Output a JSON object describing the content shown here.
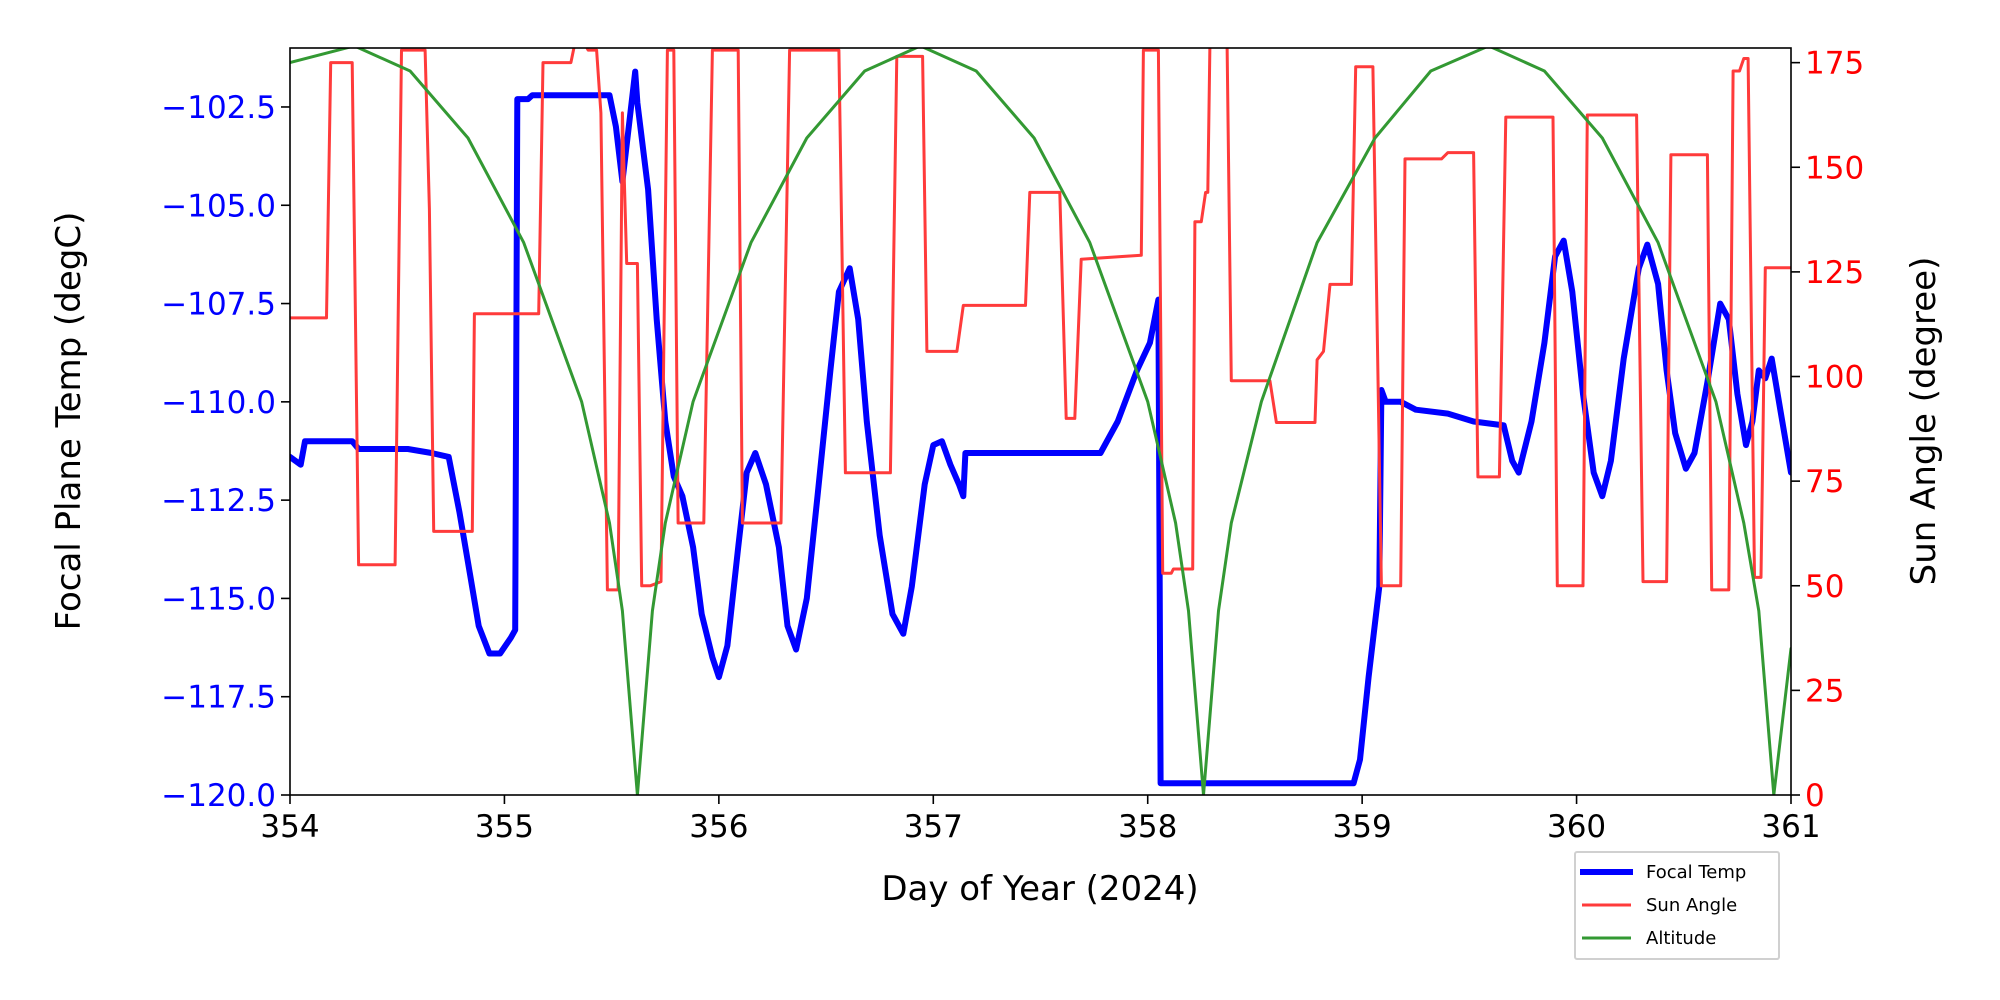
{
  "chart_data": {
    "type": "line",
    "title": "",
    "xlabel": "Day of Year (2024)",
    "ylabel_left": "Focal Plane Temp (degC)",
    "ylabel_right": "Sun Angle (degree)",
    "xlim": [
      354,
      361
    ],
    "ylim_left": [
      -120,
      -101
    ],
    "ylim_right": [
      0,
      178.5
    ],
    "x_ticks": [
      "354",
      "355",
      "356",
      "357",
      "358",
      "359",
      "360",
      "361"
    ],
    "x_tick_values": [
      354,
      355,
      356,
      357,
      358,
      359,
      360,
      361
    ],
    "left_ticks": [
      "−120.0",
      "−117.5",
      "−115.0",
      "−112.5",
      "−110.0",
      "−107.5",
      "−105.0",
      "−102.5"
    ],
    "left_tick_values": [
      -120,
      -117.5,
      -115,
      -112.5,
      -110,
      -107.5,
      -105,
      -102.5
    ],
    "right_ticks": [
      "0",
      "25",
      "50",
      "75",
      "100",
      "125",
      "150",
      "175"
    ],
    "right_tick_values": [
      0,
      25,
      50,
      75,
      100,
      125,
      150,
      175
    ],
    "colors": {
      "left_axis": "#0000ff",
      "right_axis": "#ff0000",
      "focal": "#0000ff",
      "sun": "#ff3b3b",
      "altitude": "#339933"
    },
    "legend": {
      "placement": "lower-right outside",
      "entries": [
        "Focal Temp",
        "Sun Angle",
        "Altitude"
      ]
    },
    "series": [
      {
        "name": "Focal Temp",
        "axis": "left",
        "points": [
          [
            354.0,
            -111.4
          ],
          [
            354.05,
            -111.6
          ],
          [
            354.07,
            -111.0
          ],
          [
            354.29,
            -111.0
          ],
          [
            354.32,
            -111.2
          ],
          [
            354.55,
            -111.2
          ],
          [
            354.66,
            -111.3
          ],
          [
            354.74,
            -111.4
          ],
          [
            354.79,
            -112.8
          ],
          [
            354.84,
            -114.4
          ],
          [
            354.88,
            -115.7
          ],
          [
            354.93,
            -116.4
          ],
          [
            354.98,
            -116.4
          ],
          [
            355.03,
            -116.0
          ],
          [
            355.05,
            -115.8
          ],
          [
            355.06,
            -102.3
          ],
          [
            355.11,
            -102.3
          ],
          [
            355.13,
            -102.2
          ],
          [
            355.49,
            -102.2
          ],
          [
            355.52,
            -103.0
          ],
          [
            355.55,
            -104.4
          ],
          [
            355.58,
            -103.0
          ],
          [
            355.61,
            -101.6
          ],
          [
            355.62,
            -102.4
          ],
          [
            355.67,
            -104.6
          ],
          [
            355.71,
            -107.9
          ],
          [
            355.75,
            -110.5
          ],
          [
            355.79,
            -111.9
          ],
          [
            355.83,
            -112.4
          ],
          [
            355.88,
            -113.7
          ],
          [
            355.92,
            -115.4
          ],
          [
            355.97,
            -116.5
          ],
          [
            356.0,
            -117.0
          ],
          [
            356.04,
            -116.2
          ],
          [
            356.09,
            -113.7
          ],
          [
            356.13,
            -111.8
          ],
          [
            356.17,
            -111.3
          ],
          [
            356.22,
            -112.1
          ],
          [
            356.28,
            -113.7
          ],
          [
            356.32,
            -115.7
          ],
          [
            356.36,
            -116.3
          ],
          [
            356.41,
            -115.0
          ],
          [
            356.46,
            -112.4
          ],
          [
            356.52,
            -109.2
          ],
          [
            356.56,
            -107.2
          ],
          [
            356.61,
            -106.6
          ],
          [
            356.65,
            -107.9
          ],
          [
            356.69,
            -110.5
          ],
          [
            356.75,
            -113.4
          ],
          [
            356.81,
            -115.4
          ],
          [
            356.86,
            -115.9
          ],
          [
            356.9,
            -114.7
          ],
          [
            356.96,
            -112.1
          ],
          [
            357.0,
            -111.1
          ],
          [
            357.04,
            -111.0
          ],
          [
            357.08,
            -111.6
          ],
          [
            357.12,
            -112.1
          ],
          [
            357.14,
            -112.4
          ],
          [
            357.15,
            -111.3
          ],
          [
            357.78,
            -111.3
          ],
          [
            357.86,
            -110.5
          ],
          [
            357.95,
            -109.2
          ],
          [
            358.01,
            -108.5
          ],
          [
            358.05,
            -107.4
          ],
          [
            358.06,
            -119.7
          ],
          [
            358.96,
            -119.7
          ],
          [
            358.99,
            -119.1
          ],
          [
            359.03,
            -117.0
          ],
          [
            359.08,
            -114.7
          ],
          [
            359.09,
            -109.7
          ],
          [
            359.11,
            -110.0
          ],
          [
            359.18,
            -110.0
          ],
          [
            359.25,
            -110.2
          ],
          [
            359.4,
            -110.3
          ],
          [
            359.52,
            -110.5
          ],
          [
            359.66,
            -110.6
          ],
          [
            359.7,
            -111.5
          ],
          [
            359.73,
            -111.8
          ],
          [
            359.79,
            -110.5
          ],
          [
            359.85,
            -108.5
          ],
          [
            359.9,
            -106.3
          ],
          [
            359.94,
            -105.9
          ],
          [
            359.98,
            -107.2
          ],
          [
            360.03,
            -109.8
          ],
          [
            360.08,
            -111.8
          ],
          [
            360.12,
            -112.4
          ],
          [
            360.16,
            -111.5
          ],
          [
            360.22,
            -108.9
          ],
          [
            360.29,
            -106.6
          ],
          [
            360.33,
            -106.0
          ],
          [
            360.38,
            -107.0
          ],
          [
            360.42,
            -109.2
          ],
          [
            360.46,
            -110.8
          ],
          [
            360.51,
            -111.7
          ],
          [
            360.55,
            -111.3
          ],
          [
            360.61,
            -109.5
          ],
          [
            360.67,
            -107.5
          ],
          [
            360.71,
            -107.9
          ],
          [
            360.75,
            -109.8
          ],
          [
            360.79,
            -111.1
          ],
          [
            360.82,
            -110.5
          ],
          [
            360.85,
            -109.2
          ],
          [
            360.88,
            -109.4
          ],
          [
            360.91,
            -108.9
          ],
          [
            360.95,
            -110.2
          ],
          [
            361.0,
            -111.8
          ]
        ]
      },
      {
        "name": "Sun Angle",
        "axis": "right",
        "points": [
          [
            354.0,
            114
          ],
          [
            354.17,
            114
          ],
          [
            354.19,
            175
          ],
          [
            354.29,
            175
          ],
          [
            354.32,
            55
          ],
          [
            354.49,
            55
          ],
          [
            354.52,
            178
          ],
          [
            354.63,
            178
          ],
          [
            354.65,
            140
          ],
          [
            354.67,
            63
          ],
          [
            354.85,
            63
          ],
          [
            354.86,
            115
          ],
          [
            355.16,
            115
          ],
          [
            355.18,
            175
          ],
          [
            355.31,
            175
          ],
          [
            355.33,
            180
          ],
          [
            355.37,
            180
          ],
          [
            355.39,
            178
          ],
          [
            355.43,
            178
          ],
          [
            355.45,
            163
          ],
          [
            355.48,
            49
          ],
          [
            355.53,
            49
          ],
          [
            355.55,
            163
          ],
          [
            355.57,
            127
          ],
          [
            355.62,
            127
          ],
          [
            355.64,
            50
          ],
          [
            355.68,
            50
          ],
          [
            355.73,
            51
          ],
          [
            355.76,
            178
          ],
          [
            355.79,
            178
          ],
          [
            355.81,
            65
          ],
          [
            355.93,
            65
          ],
          [
            355.97,
            178
          ],
          [
            356.09,
            178
          ],
          [
            356.11,
            65
          ],
          [
            356.29,
            65
          ],
          [
            356.33,
            178
          ],
          [
            356.56,
            178
          ],
          [
            356.59,
            77
          ],
          [
            356.8,
            77
          ],
          [
            356.83,
            176.5
          ],
          [
            356.95,
            176.5
          ],
          [
            356.97,
            106
          ],
          [
            357.11,
            106
          ],
          [
            357.14,
            117
          ],
          [
            357.43,
            117
          ],
          [
            357.45,
            144
          ],
          [
            357.59,
            144
          ],
          [
            357.62,
            90
          ],
          [
            357.66,
            90
          ],
          [
            357.69,
            128
          ],
          [
            357.97,
            129
          ],
          [
            357.98,
            178
          ],
          [
            358.05,
            178
          ],
          [
            358.07,
            53
          ],
          [
            358.11,
            53
          ],
          [
            358.12,
            54
          ],
          [
            358.21,
            54
          ],
          [
            358.22,
            137
          ],
          [
            358.25,
            137
          ],
          [
            358.27,
            144
          ],
          [
            358.28,
            144
          ],
          [
            358.29,
            179
          ],
          [
            358.37,
            179
          ],
          [
            358.39,
            99
          ],
          [
            358.57,
            99
          ],
          [
            358.6,
            89
          ],
          [
            358.78,
            89
          ],
          [
            358.79,
            104
          ],
          [
            358.82,
            106
          ],
          [
            358.85,
            122
          ],
          [
            358.95,
            122
          ],
          [
            358.97,
            174
          ],
          [
            359.05,
            174
          ],
          [
            359.09,
            50
          ],
          [
            359.18,
            50
          ],
          [
            359.2,
            152
          ],
          [
            359.37,
            152
          ],
          [
            359.4,
            153.5
          ],
          [
            359.52,
            153.5
          ],
          [
            359.54,
            76
          ],
          [
            359.64,
            76
          ],
          [
            359.67,
            162
          ],
          [
            359.89,
            162
          ],
          [
            359.91,
            50
          ],
          [
            360.03,
            50
          ],
          [
            360.05,
            162.5
          ],
          [
            360.28,
            162.5
          ],
          [
            360.31,
            51
          ],
          [
            360.42,
            51
          ],
          [
            360.44,
            153
          ],
          [
            360.61,
            153
          ],
          [
            360.63,
            49
          ],
          [
            360.71,
            49
          ],
          [
            360.73,
            173
          ],
          [
            360.76,
            173
          ],
          [
            360.78,
            176
          ],
          [
            360.8,
            176
          ],
          [
            360.83,
            52
          ],
          [
            360.86,
            52
          ],
          [
            360.88,
            126
          ],
          [
            361.0,
            126
          ]
        ]
      },
      {
        "name": "Altitude",
        "axis": "right",
        "points": [
          [
            354.0,
            175
          ],
          [
            354.3,
            179
          ],
          [
            354.56,
            173
          ],
          [
            354.83,
            157
          ],
          [
            355.09,
            132
          ],
          [
            355.36,
            94
          ],
          [
            355.49,
            65
          ],
          [
            355.55,
            44
          ],
          [
            355.62,
            0
          ],
          [
            355.69,
            44
          ],
          [
            355.75,
            65
          ],
          [
            355.88,
            94
          ],
          [
            356.15,
            132
          ],
          [
            356.41,
            157
          ],
          [
            356.68,
            173
          ],
          [
            356.94,
            179
          ],
          [
            357.2,
            173
          ],
          [
            357.47,
            157
          ],
          [
            357.73,
            132
          ],
          [
            358.0,
            94
          ],
          [
            358.13,
            65
          ],
          [
            358.19,
            44
          ],
          [
            358.26,
            0
          ],
          [
            358.33,
            44
          ],
          [
            358.39,
            65
          ],
          [
            358.53,
            94
          ],
          [
            358.79,
            132
          ],
          [
            359.06,
            157
          ],
          [
            359.32,
            173
          ],
          [
            359.59,
            179
          ],
          [
            359.85,
            173
          ],
          [
            360.12,
            157
          ],
          [
            360.38,
            132
          ],
          [
            360.65,
            94
          ],
          [
            360.78,
            65
          ],
          [
            360.85,
            44
          ],
          [
            360.92,
            0
          ],
          [
            361.0,
            35
          ]
        ]
      }
    ]
  }
}
